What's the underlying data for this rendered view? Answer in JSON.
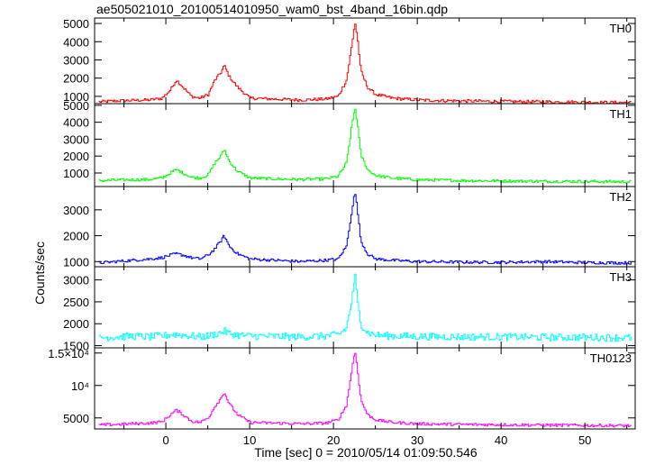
{
  "chart_data": {
    "type": "line",
    "title": "ae505021010_20100514010950_wam0_bst_4band_16bin.qdp",
    "xlabel": "Time [sec] 0 = 2010/05/14 01:09:50.546",
    "ylabel": "Counts/sec",
    "xlim": [
      -8.5,
      56
    ],
    "x_ticks": [
      "0",
      "10",
      "20",
      "30",
      "40",
      "50"
    ],
    "grid": false,
    "panels": [
      {
        "name": "TH0",
        "color": "#ff0000",
        "ylim": [
          600,
          5300
        ],
        "y_ticks": [
          {
            "value": 1000,
            "label": "1000"
          },
          {
            "value": 2000,
            "label": "2000"
          },
          {
            "value": 3000,
            "label": "3000"
          },
          {
            "value": 4000,
            "label": "4000"
          },
          {
            "value": 5000,
            "label": "5000"
          }
        ],
        "x": [
          -8,
          -6,
          -4,
          -2,
          -0.5,
          0.5,
          1.2,
          2,
          3,
          4,
          5,
          5.8,
          6.5,
          6.9,
          7.5,
          8.5,
          10,
          13,
          16,
          19,
          20.5,
          21.5,
          22.2,
          22.5,
          22.8,
          23.2,
          24,
          25,
          27,
          30,
          35,
          40,
          45,
          50,
          55.5
        ],
        "values": [
          700,
          750,
          780,
          800,
          900,
          1350,
          1900,
          1500,
          1000,
          900,
          1100,
          1900,
          2300,
          2700,
          2100,
          1500,
          900,
          850,
          800,
          850,
          1000,
          1900,
          4000,
          5100,
          4200,
          2400,
          1500,
          1100,
          900,
          800,
          750,
          720,
          700,
          680,
          660
        ]
      },
      {
        "name": "TH1",
        "color": "#00ff00",
        "ylim": [
          200,
          5100
        ],
        "y_ticks": [
          {
            "value": 1000,
            "label": "1000"
          },
          {
            "value": 2000,
            "label": "2000"
          },
          {
            "value": 3000,
            "label": "3000"
          },
          {
            "value": 4000,
            "label": "4000"
          },
          {
            "value": 5000,
            "label": "5000"
          }
        ],
        "x": [
          -8,
          -6,
          -4,
          -2,
          -0.5,
          0.5,
          1.2,
          2,
          3,
          4,
          5,
          5.8,
          6.5,
          6.9,
          7.5,
          8.5,
          10,
          13,
          16,
          19,
          20.5,
          21.5,
          22.2,
          22.5,
          22.8,
          23.2,
          24,
          25,
          27,
          30,
          35,
          40,
          45,
          50,
          55.5
        ],
        "values": [
          550,
          580,
          600,
          620,
          700,
          1000,
          1200,
          1000,
          750,
          700,
          900,
          1600,
          2000,
          2400,
          1700,
          1100,
          700,
          650,
          620,
          650,
          800,
          1600,
          4000,
          4900,
          3900,
          2100,
          1200,
          850,
          700,
          600,
          560,
          530,
          510,
          500,
          480
        ]
      },
      {
        "name": "TH2",
        "color": "#0000ff",
        "ylim": [
          800,
          3900
        ],
        "y_ticks": [
          {
            "value": 1000,
            "label": "1000"
          },
          {
            "value": 2000,
            "label": "2000"
          },
          {
            "value": 3000,
            "label": "3000"
          }
        ],
        "x": [
          -8,
          -6,
          -4,
          -2,
          -0.5,
          0.5,
          1.2,
          2,
          3,
          4,
          5,
          5.8,
          6.5,
          6.9,
          7.5,
          8.5,
          10,
          13,
          16,
          19,
          20.5,
          21.5,
          22.2,
          22.5,
          22.8,
          23.2,
          24,
          25,
          27,
          30,
          35,
          40,
          45,
          50,
          55.5
        ],
        "values": [
          950,
          1000,
          1050,
          1100,
          1150,
          1250,
          1300,
          1250,
          1150,
          1100,
          1250,
          1500,
          1800,
          2000,
          1600,
          1300,
          1100,
          1050,
          1000,
          1050,
          1100,
          1600,
          3100,
          3700,
          3000,
          1800,
          1300,
          1100,
          1050,
          1000,
          980,
          970,
          1000,
          960,
          950
        ]
      },
      {
        "name": "TH3",
        "color": "#00ffff",
        "ylim": [
          1450,
          3300
        ],
        "y_ticks": [
          {
            "value": 1500,
            "label": "1500"
          },
          {
            "value": 2000,
            "label": "2000"
          },
          {
            "value": 2500,
            "label": "2500"
          },
          {
            "value": 3000,
            "label": "3000"
          }
        ],
        "x": [
          -8,
          -6,
          -4,
          -2,
          -0.5,
          0.5,
          1.2,
          2,
          3,
          4,
          5,
          5.8,
          6.5,
          6.9,
          7.5,
          8.5,
          10,
          13,
          16,
          19,
          20.5,
          21.5,
          22.2,
          22.5,
          22.8,
          23.2,
          24,
          25,
          27,
          30,
          35,
          40,
          45,
          50,
          55.5
        ],
        "values": [
          1680,
          1700,
          1720,
          1700,
          1720,
          1750,
          1760,
          1740,
          1720,
          1700,
          1720,
          1760,
          1800,
          1830,
          1780,
          1740,
          1720,
          1710,
          1700,
          1720,
          1750,
          1900,
          2600,
          3150,
          2500,
          2000,
          1800,
          1740,
          1720,
          1710,
          1700,
          1700,
          1690,
          1690,
          1680
        ]
      },
      {
        "name": "TH0123",
        "color": "#ff00ff",
        "ylim": [
          3300,
          15800
        ],
        "y_ticks": [
          {
            "value": 5000,
            "label": "5000"
          },
          {
            "value": 10000,
            "label": "10⁴"
          },
          {
            "value": 15000,
            "label": "1.5×10⁴"
          }
        ],
        "x": [
          -8,
          -6,
          -4,
          -2,
          -0.5,
          0.5,
          1.2,
          2,
          3,
          4,
          5,
          5.8,
          6.5,
          6.9,
          7.5,
          8.5,
          10,
          13,
          16,
          19,
          20.5,
          21.5,
          22.2,
          22.5,
          22.8,
          23.2,
          24,
          25,
          27,
          30,
          35,
          40,
          45,
          50,
          55.5
        ],
        "values": [
          3900,
          4000,
          4100,
          4200,
          4400,
          5500,
          6200,
          5500,
          4500,
          4300,
          5000,
          6800,
          8000,
          9000,
          7200,
          5500,
          4300,
          4200,
          4100,
          4200,
          4700,
          7000,
          13000,
          15400,
          12500,
          7800,
          5500,
          4700,
          4300,
          4100,
          4000,
          3950,
          3900,
          3850,
          3800
        ]
      }
    ]
  }
}
